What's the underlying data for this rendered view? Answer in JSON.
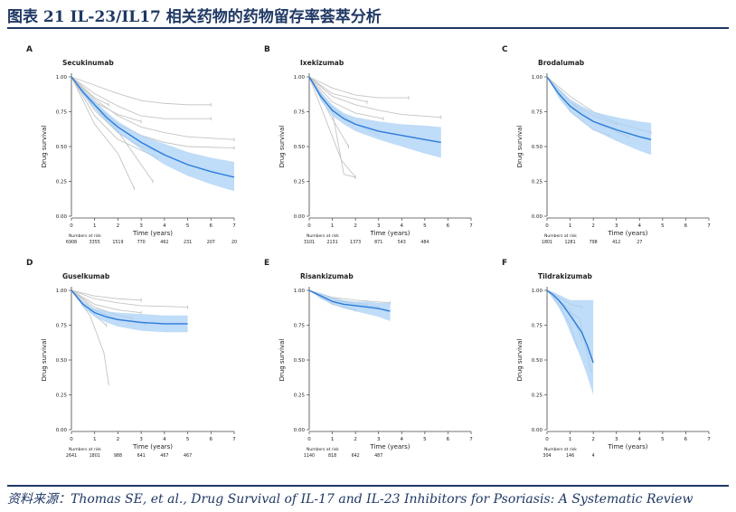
{
  "header": {
    "title": "图表 21   IL-23/IL17 相关药物的药物留存率荟萃分析"
  },
  "footer": {
    "source": "资料来源：Thomas SE, et al., Drug Survival of IL-17 and IL-23 Inhibitors for Psoriasis: A Systematic Review"
  },
  "colors": {
    "accent": "#1f3864",
    "pooled_line": "#2b7bd9",
    "ci_band": "#a9d0f5",
    "study_line": "#c4c4c4"
  },
  "chart_data": [
    {
      "type": "line",
      "panel": "A",
      "title": "Secukinumab",
      "xlabel": "Time (years)",
      "ylabel": "Drug survival",
      "xlim": [
        0,
        7
      ],
      "ylim": [
        0,
        1
      ],
      "x_ticks": [
        "0",
        "1",
        "2",
        "3",
        "4",
        "5",
        "6",
        "7"
      ],
      "y_ticks": [
        "0.00",
        "0.25",
        "0.50",
        "0.75",
        "1.00"
      ],
      "risk_label": "Numbers at risk",
      "numbers_at_risk": [
        "6908",
        "3355",
        "1519",
        "770",
        "462",
        "231",
        "207",
        "20"
      ],
      "series": [
        {
          "x": [
            0,
            0.5,
            1,
            1.5,
            2,
            3,
            4,
            5,
            6,
            7
          ],
          "y": [
            1.0,
            0.89,
            0.8,
            0.71,
            0.64,
            0.53,
            0.44,
            0.37,
            0.32,
            0.28
          ],
          "lower": [
            1.0,
            0.87,
            0.77,
            0.68,
            0.6,
            0.48,
            0.37,
            0.29,
            0.23,
            0.18
          ],
          "upper": [
            1.0,
            0.91,
            0.83,
            0.75,
            0.68,
            0.58,
            0.52,
            0.46,
            0.42,
            0.39
          ]
        }
      ],
      "studies": [
        {
          "x": [
            0,
            1,
            2,
            3,
            4,
            5,
            6
          ],
          "y": [
            1.0,
            0.94,
            0.88,
            0.83,
            0.81,
            0.8,
            0.8
          ]
        },
        {
          "x": [
            0,
            1,
            2,
            3,
            4,
            5,
            6
          ],
          "y": [
            1.0,
            0.88,
            0.79,
            0.72,
            0.7,
            0.7,
            0.7
          ]
        },
        {
          "x": [
            0,
            1,
            2,
            3,
            4,
            5,
            7
          ],
          "y": [
            1.0,
            0.84,
            0.72,
            0.64,
            0.6,
            0.57,
            0.55
          ]
        },
        {
          "x": [
            0,
            1,
            2,
            3,
            4,
            5,
            7
          ],
          "y": [
            1.0,
            0.8,
            0.66,
            0.58,
            0.53,
            0.5,
            0.49
          ]
        },
        {
          "x": [
            0,
            1,
            2,
            3,
            4
          ],
          "y": [
            1.0,
            0.76,
            0.6,
            0.5,
            0.45
          ]
        },
        {
          "x": [
            0,
            1,
            2,
            3.7
          ],
          "y": [
            1.0,
            0.72,
            0.55,
            0.42
          ]
        },
        {
          "x": [
            0,
            1,
            2,
            2.7
          ],
          "y": [
            1.0,
            0.66,
            0.45,
            0.2
          ]
        },
        {
          "x": [
            0,
            1,
            2,
            3
          ],
          "y": [
            1.0,
            0.82,
            0.73,
            0.68
          ]
        },
        {
          "x": [
            0,
            1,
            1.6
          ],
          "y": [
            1.0,
            0.85,
            0.8
          ]
        },
        {
          "x": [
            0,
            1,
            2,
            3.5
          ],
          "y": [
            1.0,
            0.78,
            0.61,
            0.25
          ]
        }
      ]
    },
    {
      "type": "line",
      "panel": "B",
      "title": "Ixekizumab",
      "xlabel": "Time (years)",
      "ylabel": "Drug survival",
      "xlim": [
        0,
        7
      ],
      "ylim": [
        0,
        1
      ],
      "x_ticks": [
        "0",
        "1",
        "2",
        "3",
        "4",
        "5",
        "6",
        "7"
      ],
      "y_ticks": [
        "0.00",
        "0.25",
        "0.50",
        "0.75",
        "1.00"
      ],
      "risk_label": "Numbers at risk",
      "numbers_at_risk": [
        "3101",
        "2131",
        "1373",
        "871",
        "543",
        "484"
      ],
      "series": [
        {
          "x": [
            0,
            0.5,
            1,
            1.5,
            2,
            3,
            4,
            5,
            5.7
          ],
          "y": [
            1.0,
            0.86,
            0.76,
            0.7,
            0.66,
            0.61,
            0.58,
            0.55,
            0.53
          ],
          "lower": [
            1.0,
            0.83,
            0.72,
            0.66,
            0.61,
            0.55,
            0.5,
            0.45,
            0.42
          ],
          "upper": [
            1.0,
            0.89,
            0.8,
            0.74,
            0.71,
            0.68,
            0.66,
            0.65,
            0.64
          ]
        }
      ],
      "studies": [
        {
          "x": [
            0,
            1,
            2,
            3,
            4.3
          ],
          "y": [
            1.0,
            0.92,
            0.87,
            0.85,
            0.85
          ]
        },
        {
          "x": [
            0,
            1,
            2,
            3,
            4,
            5.7
          ],
          "y": [
            1.0,
            0.86,
            0.8,
            0.76,
            0.73,
            0.71
          ]
        },
        {
          "x": [
            0,
            1,
            2,
            3.2
          ],
          "y": [
            1.0,
            0.82,
            0.74,
            0.7
          ]
        },
        {
          "x": [
            0,
            1,
            2,
            3
          ],
          "y": [
            1.0,
            0.78,
            0.66,
            0.58
          ]
        },
        {
          "x": [
            0,
            1,
            1.7
          ],
          "y": [
            1.0,
            0.7,
            0.5
          ]
        },
        {
          "x": [
            0,
            0.7,
            1.4,
            2
          ],
          "y": [
            1.0,
            0.7,
            0.4,
            0.28
          ]
        },
        {
          "x": [
            0,
            1,
            1.5,
            2
          ],
          "y": [
            1.0,
            0.75,
            0.3,
            0.28
          ]
        },
        {
          "x": [
            0,
            1,
            2.5
          ],
          "y": [
            1.0,
            0.88,
            0.82
          ]
        }
      ]
    },
    {
      "type": "line",
      "panel": "C",
      "title": "Brodalumab",
      "xlabel": "Time (years)",
      "ylabel": "Drug survival",
      "xlim": [
        0,
        7
      ],
      "ylim": [
        0,
        1
      ],
      "x_ticks": [
        "0",
        "1",
        "2",
        "3",
        "4",
        "5",
        "6",
        "7"
      ],
      "y_ticks": [
        "0.00",
        "0.25",
        "0.50",
        "0.75",
        "1.00"
      ],
      "risk_label": "Numbers at risk",
      "numbers_at_risk": [
        "1801",
        "1281",
        "798",
        "412",
        "27"
      ],
      "series": [
        {
          "x": [
            0,
            0.5,
            1,
            1.5,
            2,
            3,
            4,
            4.5
          ],
          "y": [
            1.0,
            0.88,
            0.79,
            0.73,
            0.68,
            0.62,
            0.57,
            0.55
          ],
          "lower": [
            1.0,
            0.85,
            0.75,
            0.68,
            0.62,
            0.54,
            0.47,
            0.44
          ],
          "upper": [
            1.0,
            0.92,
            0.84,
            0.79,
            0.75,
            0.71,
            0.68,
            0.67
          ]
        }
      ],
      "studies": [
        {
          "x": [
            0,
            1,
            2,
            3,
            4.5
          ],
          "y": [
            1.0,
            0.86,
            0.75,
            0.67,
            0.6
          ]
        },
        {
          "x": [
            0,
            1,
            2,
            3
          ],
          "y": [
            1.0,
            0.82,
            0.72,
            0.66
          ]
        },
        {
          "x": [
            0,
            1,
            2,
            2.5
          ],
          "y": [
            1.0,
            0.78,
            0.68,
            0.64
          ]
        },
        {
          "x": [
            0,
            1,
            2,
            2.7
          ],
          "y": [
            1.0,
            0.75,
            0.62,
            0.58
          ]
        },
        {
          "x": [
            0,
            1,
            2,
            3.5
          ],
          "y": [
            1.0,
            0.82,
            0.68,
            0.57
          ]
        }
      ]
    },
    {
      "type": "line",
      "panel": "D",
      "title": "Guselkumab",
      "xlabel": "Time (years)",
      "ylabel": "Drug survival",
      "xlim": [
        0,
        7
      ],
      "ylim": [
        0,
        1
      ],
      "x_ticks": [
        "0",
        "1",
        "2",
        "3",
        "4",
        "5",
        "6",
        "7"
      ],
      "y_ticks": [
        "0.00",
        "0.25",
        "0.50",
        "0.75",
        "1.00"
      ],
      "risk_label": "Numbers at risk",
      "numbers_at_risk": [
        "2641",
        "1801",
        "988",
        "641",
        "467",
        "467"
      ],
      "series": [
        {
          "x": [
            0,
            0.5,
            1,
            1.5,
            2,
            3,
            4,
            5
          ],
          "y": [
            1.0,
            0.9,
            0.84,
            0.81,
            0.79,
            0.77,
            0.76,
            0.76
          ],
          "lower": [
            1.0,
            0.88,
            0.81,
            0.77,
            0.74,
            0.71,
            0.7,
            0.7
          ],
          "upper": [
            1.0,
            0.92,
            0.87,
            0.85,
            0.84,
            0.83,
            0.82,
            0.82
          ]
        }
      ],
      "studies": [
        {
          "x": [
            0,
            1,
            2,
            3
          ],
          "y": [
            1.0,
            0.96,
            0.94,
            0.93
          ]
        },
        {
          "x": [
            0,
            1,
            2,
            3,
            5
          ],
          "y": [
            1.0,
            0.94,
            0.91,
            0.89,
            0.88
          ]
        },
        {
          "x": [
            0,
            1,
            2,
            3
          ],
          "y": [
            1.0,
            0.9,
            0.86,
            0.84
          ]
        },
        {
          "x": [
            0,
            1,
            2,
            3.2
          ],
          "y": [
            1.0,
            0.86,
            0.79,
            0.76
          ]
        },
        {
          "x": [
            0,
            1,
            1.5
          ],
          "y": [
            1.0,
            0.82,
            0.75
          ]
        },
        {
          "x": [
            0,
            0.8,
            1.4,
            1.6
          ],
          "y": [
            1.0,
            0.82,
            0.55,
            0.33
          ]
        },
        {
          "x": [
            0,
            1,
            2,
            2.6
          ],
          "y": [
            1.0,
            0.88,
            0.82,
            0.8
          ]
        }
      ]
    },
    {
      "type": "line",
      "panel": "E",
      "title": "Risankizumab",
      "xlabel": "Time (years)",
      "ylabel": "Drug survival",
      "xlim": [
        0,
        7
      ],
      "ylim": [
        0,
        1
      ],
      "x_ticks": [
        "0",
        "1",
        "2",
        "3",
        "4",
        "5",
        "6",
        "7"
      ],
      "y_ticks": [
        "0.00",
        "0.25",
        "0.50",
        "0.75",
        "1.00"
      ],
      "risk_label": "Numbers at risk",
      "numbers_at_risk": [
        "1140",
        "818",
        "642",
        "487"
      ],
      "series": [
        {
          "x": [
            0,
            0.5,
            1,
            1.5,
            2,
            2.5,
            3,
            3.5
          ],
          "y": [
            1.0,
            0.96,
            0.92,
            0.9,
            0.89,
            0.88,
            0.87,
            0.85
          ],
          "lower": [
            1.0,
            0.94,
            0.9,
            0.87,
            0.85,
            0.83,
            0.81,
            0.78
          ],
          "upper": [
            1.0,
            0.98,
            0.95,
            0.93,
            0.92,
            0.92,
            0.91,
            0.91
          ]
        }
      ],
      "studies": [
        {
          "x": [
            0,
            1,
            2,
            3.5
          ],
          "y": [
            1.0,
            0.95,
            0.93,
            0.91
          ]
        },
        {
          "x": [
            0,
            1,
            2,
            3
          ],
          "y": [
            1.0,
            0.93,
            0.9,
            0.88
          ]
        },
        {
          "x": [
            0,
            1,
            2
          ],
          "y": [
            1.0,
            0.9,
            0.86
          ]
        },
        {
          "x": [
            0,
            1.5,
            2.5
          ],
          "y": [
            1.0,
            0.92,
            0.9
          ]
        }
      ]
    },
    {
      "type": "line",
      "panel": "F",
      "title": "Tildrakizumab",
      "xlabel": "Time (years)",
      "ylabel": "Drug survival",
      "xlim": [
        0,
        7
      ],
      "ylim": [
        0,
        1
      ],
      "x_ticks": [
        "0",
        "1",
        "2",
        "3",
        "4",
        "5",
        "6",
        "7"
      ],
      "y_ticks": [
        "0.00",
        "0.25",
        "0.50",
        "0.75",
        "1.00"
      ],
      "risk_label": "Numbers at risk",
      "numbers_at_risk": [
        "304",
        "146",
        "4"
      ],
      "series": [
        {
          "x": [
            0,
            0.25,
            0.5,
            0.75,
            1,
            1.25,
            1.5,
            1.75,
            2
          ],
          "y": [
            1.0,
            0.97,
            0.93,
            0.88,
            0.82,
            0.76,
            0.7,
            0.6,
            0.48
          ],
          "lower": [
            1.0,
            0.94,
            0.88,
            0.8,
            0.7,
            0.6,
            0.5,
            0.38,
            0.25
          ],
          "upper": [
            1.0,
            0.99,
            0.97,
            0.95,
            0.93,
            0.93,
            0.93,
            0.93,
            0.93
          ]
        }
      ],
      "studies": [
        {
          "x": [
            0,
            0.5,
            1,
            1.5
          ],
          "y": [
            1.0,
            0.95,
            0.9,
            0.88
          ]
        },
        {
          "x": [
            0,
            0.5,
            1,
            1.5
          ],
          "y": [
            1.0,
            0.93,
            0.86,
            0.65
          ]
        },
        {
          "x": [
            0,
            0.5,
            1,
            1.3
          ],
          "y": [
            1.0,
            0.9,
            0.75,
            0.6
          ]
        },
        {
          "x": [
            0,
            0.6,
            1.4,
            1.9
          ],
          "y": [
            1.0,
            0.88,
            0.8,
            0.42
          ]
        }
      ]
    }
  ]
}
